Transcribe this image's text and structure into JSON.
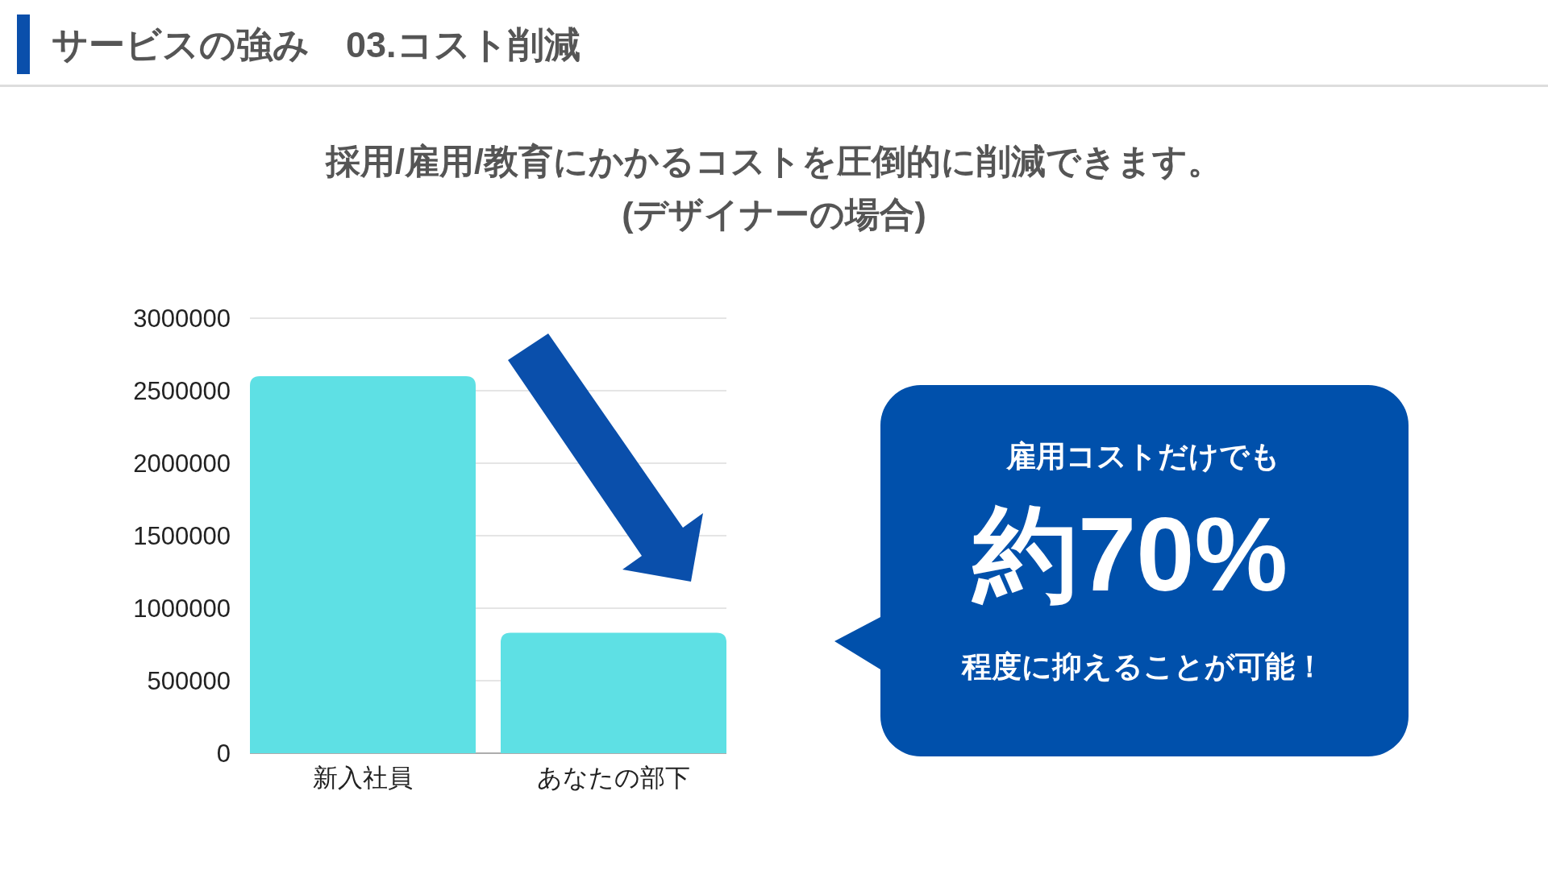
{
  "chart_data": {
    "type": "bar",
    "title": "採用/雇用/教育にかかるコストを圧倒的に削減できます。",
    "subtitle": "(デザイナーの場合)",
    "categories": [
      "新入社員",
      "あなたの部下"
    ],
    "values": [
      2600000,
      830000
    ],
    "color": "#5ee0e4",
    "ylim": [
      0,
      3000000
    ],
    "yticks": [
      0,
      500000,
      1000000,
      1500000,
      2000000,
      2500000,
      3000000
    ],
    "grid": "y",
    "annotations": [
      "サービスの強み　03.コスト削減",
      "雇用コストだけでも",
      "約70%",
      "程度に抑えることが可能！"
    ]
  }
}
